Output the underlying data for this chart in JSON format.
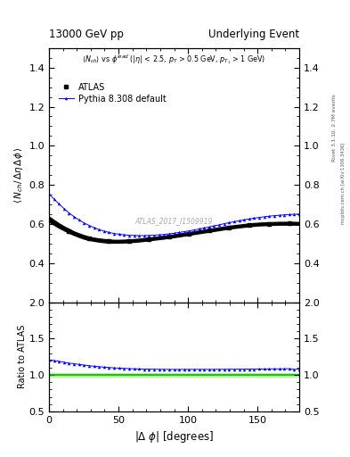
{
  "title_left": "13000 GeV pp",
  "title_right": "Underlying Event",
  "right_label_top": "Rivet 3.1.10, 2.7M events",
  "right_label_bot": "mcplots.cern.ch [arXiv:1306.3436]",
  "watermark": "ATLAS_2017_I1509919",
  "ylabel_main": "$\\langle N_{ch}/ \\Delta\\eta$ delta$\\phi\\rangle$",
  "ylabel_ratio": "Ratio to ATLAS",
  "xlabel": "$|\\Delta\\ \\phi|$ [degrees]",
  "ylim_main": [
    0.2,
    1.5
  ],
  "ylim_ratio": [
    0.5,
    2.0
  ],
  "yticks_main": [
    0.4,
    0.6,
    0.8,
    1.0,
    1.2,
    1.4
  ],
  "yticks_ratio": [
    0.5,
    1.0,
    1.5,
    2.0
  ],
  "xlim": [
    0,
    180
  ],
  "xticks": [
    0,
    50,
    100,
    150
  ],
  "atlas_color": "#000000",
  "pythia_color": "#0000ff",
  "ratio_line_color": "#00bb00",
  "atlas_label": "ATLAS",
  "pythia_label": "Pythia 8.308 default",
  "dphi": [
    0.0,
    3.6,
    7.2,
    10.8,
    14.4,
    18.0,
    21.6,
    25.2,
    28.8,
    32.4,
    36.0,
    39.6,
    43.2,
    46.8,
    50.4,
    54.0,
    57.6,
    61.2,
    64.8,
    68.4,
    72.0,
    75.6,
    79.2,
    82.8,
    86.4,
    90.0,
    93.6,
    97.2,
    100.8,
    104.4,
    108.0,
    111.6,
    115.2,
    118.8,
    122.4,
    126.0,
    129.6,
    133.2,
    136.8,
    140.4,
    144.0,
    147.6,
    151.2,
    154.8,
    158.4,
    162.0,
    165.6,
    169.2,
    172.8,
    176.4,
    180.0
  ],
  "atlas_values": [
    0.625,
    0.608,
    0.592,
    0.578,
    0.565,
    0.553,
    0.543,
    0.534,
    0.527,
    0.522,
    0.518,
    0.515,
    0.513,
    0.512,
    0.512,
    0.513,
    0.514,
    0.516,
    0.518,
    0.521,
    0.524,
    0.527,
    0.53,
    0.533,
    0.537,
    0.54,
    0.544,
    0.548,
    0.552,
    0.556,
    0.56,
    0.564,
    0.568,
    0.572,
    0.576,
    0.58,
    0.584,
    0.587,
    0.59,
    0.593,
    0.596,
    0.598,
    0.6,
    0.601,
    0.602,
    0.603,
    0.604,
    0.604,
    0.604,
    0.604,
    0.603
  ],
  "atlas_err": [
    0.013,
    0.012,
    0.011,
    0.01,
    0.01,
    0.009,
    0.009,
    0.009,
    0.008,
    0.008,
    0.008,
    0.008,
    0.008,
    0.007,
    0.007,
    0.007,
    0.007,
    0.007,
    0.007,
    0.007,
    0.007,
    0.007,
    0.007,
    0.007,
    0.007,
    0.007,
    0.007,
    0.007,
    0.007,
    0.007,
    0.007,
    0.007,
    0.007,
    0.007,
    0.007,
    0.007,
    0.007,
    0.007,
    0.007,
    0.007,
    0.007,
    0.007,
    0.007,
    0.007,
    0.007,
    0.007,
    0.007,
    0.007,
    0.007,
    0.007,
    0.007
  ],
  "pythia_values": [
    0.755,
    0.728,
    0.703,
    0.679,
    0.657,
    0.638,
    0.621,
    0.606,
    0.593,
    0.582,
    0.572,
    0.564,
    0.557,
    0.552,
    0.548,
    0.545,
    0.543,
    0.542,
    0.541,
    0.541,
    0.542,
    0.543,
    0.545,
    0.547,
    0.55,
    0.553,
    0.557,
    0.561,
    0.565,
    0.57,
    0.575,
    0.58,
    0.585,
    0.591,
    0.596,
    0.602,
    0.607,
    0.612,
    0.617,
    0.622,
    0.626,
    0.63,
    0.634,
    0.637,
    0.64,
    0.643,
    0.645,
    0.647,
    0.649,
    0.65,
    0.651
  ],
  "ratio_values": [
    1.21,
    1.198,
    1.188,
    1.175,
    1.163,
    1.154,
    1.145,
    1.136,
    1.128,
    1.12,
    1.114,
    1.108,
    1.103,
    1.098,
    1.094,
    1.091,
    1.088,
    1.085,
    1.083,
    1.081,
    1.08,
    1.079,
    1.078,
    1.077,
    1.077,
    1.076,
    1.076,
    1.077,
    1.077,
    1.077,
    1.077,
    1.077,
    1.077,
    1.077,
    1.078,
    1.078,
    1.079,
    1.079,
    1.08,
    1.08,
    1.081,
    1.081,
    1.082,
    1.082,
    1.083,
    1.084,
    1.084,
    1.085,
    1.086,
    1.077,
    1.079
  ],
  "ratio_err": [
    0.022,
    0.02,
    0.019,
    0.018,
    0.017,
    0.016,
    0.016,
    0.015,
    0.015,
    0.014,
    0.014,
    0.014,
    0.013,
    0.013,
    0.013,
    0.013,
    0.013,
    0.013,
    0.013,
    0.013,
    0.013,
    0.013,
    0.013,
    0.013,
    0.013,
    0.013,
    0.013,
    0.013,
    0.013,
    0.013,
    0.013,
    0.013,
    0.013,
    0.013,
    0.013,
    0.013,
    0.013,
    0.013,
    0.013,
    0.013,
    0.013,
    0.013,
    0.013,
    0.013,
    0.013,
    0.013,
    0.013,
    0.013,
    0.013,
    0.013,
    0.013
  ]
}
